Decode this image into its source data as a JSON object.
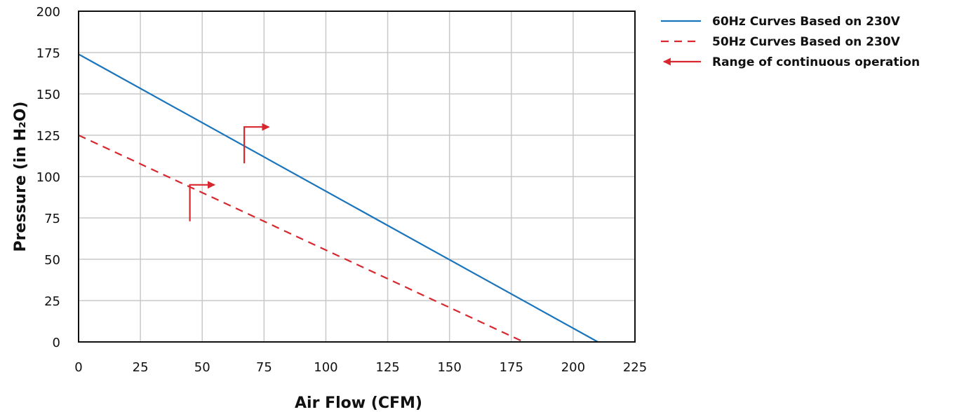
{
  "chart_data": {
    "type": "line",
    "xlabel": "Air Flow (CFM)",
    "ylabel": "Pressure (in H₂O)",
    "xlim": [
      0,
      225
    ],
    "ylim": [
      0,
      200
    ],
    "xticks": [
      "0",
      "25",
      "50",
      "75",
      "100",
      "125",
      "150",
      "175",
      "200",
      "225"
    ],
    "yticks": [
      "0",
      "25",
      "50",
      "75",
      "100",
      "125",
      "150",
      "175",
      "200"
    ],
    "grid": true,
    "legend_position": "top-right, outside plot",
    "series": [
      {
        "name": "60Hz Curves Based on 230V",
        "color": "#1a75bc",
        "style": "solid",
        "points": [
          [
            0,
            174
          ],
          [
            210,
            0
          ]
        ]
      },
      {
        "name": "50Hz Curves Based on 230V",
        "color": "#d7282f",
        "style": "dashed",
        "points": [
          [
            0,
            125
          ],
          [
            180,
            0
          ]
        ]
      }
    ],
    "annotations": [
      {
        "type": "range-marker",
        "label": "Range of continuous operation",
        "color": "#d7282f",
        "x": 67,
        "y_bottom": 108,
        "y_top": 130,
        "x_tip": 77
      },
      {
        "type": "range-marker",
        "label": "Range of continuous operation",
        "color": "#d7282f",
        "x": 45,
        "y_bottom": 73,
        "y_top": 95,
        "x_tip": 55
      }
    ],
    "legend": [
      {
        "label": "60Hz Curves Based on 230V",
        "marker": "solid-line",
        "color": "#1a75bc"
      },
      {
        "label": "50Hz Curves Based on 230V",
        "marker": "dashed-line",
        "color": "#d7282f"
      },
      {
        "label": "Range of continuous operation",
        "marker": "left-arrow",
        "color": "#d7282f"
      }
    ]
  }
}
